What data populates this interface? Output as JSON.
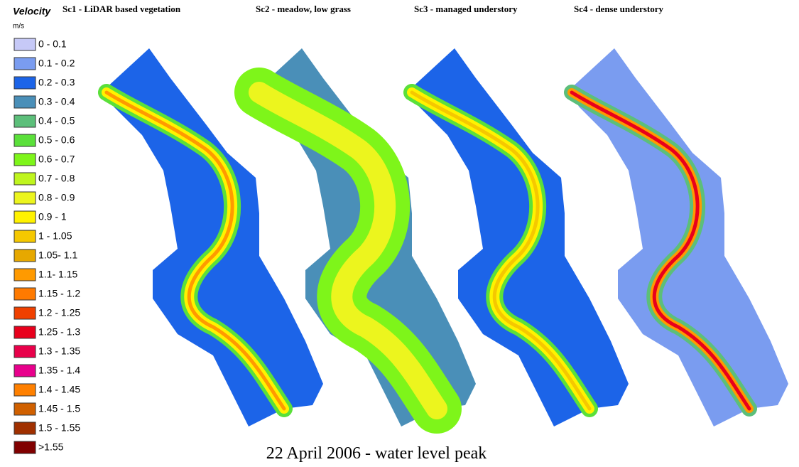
{
  "legend": {
    "title": "Velocity",
    "unit": "m/s",
    "items": [
      {
        "label": "0 - 0.1",
        "color": "#c6c9f7"
      },
      {
        "label": "0.1 - 0.2",
        "color": "#7a9cf0"
      },
      {
        "label": "0.2 - 0.3",
        "color": "#1c64e8"
      },
      {
        "label": "0.3 - 0.4",
        "color": "#4a8fb8"
      },
      {
        "label": "0.4 - 0.5",
        "color": "#5cbf7a"
      },
      {
        "label": "0.5 - 0.6",
        "color": "#5be03a"
      },
      {
        "label": "0.6 - 0.7",
        "color": "#7ef51a"
      },
      {
        "label": "0.7 - 0.8",
        "color": "#bff51e"
      },
      {
        "label": "0.8 - 0.9",
        "color": "#ecf51e"
      },
      {
        "label": "0.9 - 1",
        "color": "#fff200"
      },
      {
        "label": "1 - 1.05",
        "color": "#f5c800"
      },
      {
        "label": "1.05- 1.1",
        "color": "#e6a800"
      },
      {
        "label": "1.1- 1.15",
        "color": "#ff9a00"
      },
      {
        "label": "1.15 - 1.2",
        "color": "#ff7a00"
      },
      {
        "label": "1.2 - 1.25",
        "color": "#f04000"
      },
      {
        "label": "1.25 - 1.3",
        "color": "#e8001c"
      },
      {
        "label": "1.3 - 1.35",
        "color": "#e8004a"
      },
      {
        "label": "1.35 - 1.4",
        "color": "#e8008c"
      },
      {
        "label": "1.4 - 1.45",
        "color": "#ff8000"
      },
      {
        "label": "1.45 - 1.5",
        "color": "#d06000"
      },
      {
        "label": "1.5 - 1.55",
        "color": "#a03000"
      },
      {
        "label": ">1.55",
        "color": "#800000"
      }
    ]
  },
  "panels": [
    {
      "title": "Sc1 - LiDAR based vegetation"
    },
    {
      "title": "Sc2 - meadow, low grass"
    },
    {
      "title": "Sc3 - managed understory"
    },
    {
      "title": "Sc4 - dense understory"
    }
  ],
  "caption": "22 April 2006 - water level peak"
}
